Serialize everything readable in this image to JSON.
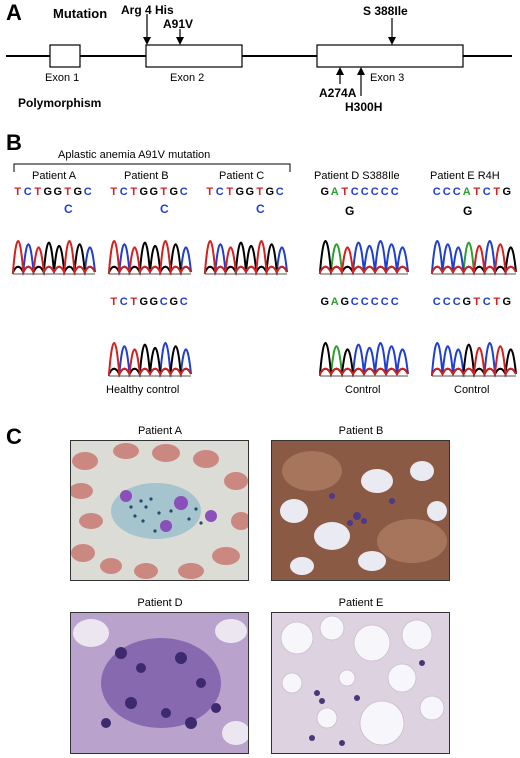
{
  "panel_a": {
    "letter": "A",
    "mutation_label": "Mutation",
    "polymorphism_label": "Polymorphism",
    "mutations": {
      "m1": "Arg 4 His",
      "m2": "A91V",
      "m3": "S 388Ile"
    },
    "polymorphisms": {
      "p1": "A274A",
      "p2": "H300H"
    },
    "exons": {
      "e1": "Exon 1",
      "e2": "Exon 2",
      "e3": "Exon 3"
    }
  },
  "panel_b": {
    "letter": "B",
    "group_title": "Aplastic anemia A91V mutation",
    "patients": {
      "a": {
        "title": "Patient A",
        "sequence": "TCTGGTGC",
        "variant": "C"
      },
      "b": {
        "title": "Patient B",
        "sequence": "TCTGGTGC",
        "variant": "C"
      },
      "c": {
        "title": "Patient C",
        "sequence": "TCTGGTGC",
        "variant": "C"
      },
      "d": {
        "title": "Patient D S388Ile",
        "sequence": "GATCCCCC",
        "variant": "G"
      },
      "e": {
        "title": "Patient E R4H",
        "sequence": "CCCATCTG",
        "variant": "G"
      }
    },
    "controls": {
      "healthy": {
        "sequence": "TCTGGCGC",
        "label": "Healthy control"
      },
      "d": {
        "sequence": "GAGCCCCC",
        "label": "Control"
      },
      "e": {
        "sequence": "CCCGTCTG",
        "label": "Control"
      }
    }
  },
  "panel_c": {
    "letter": "C",
    "images": {
      "a": {
        "title": "Patient A"
      },
      "b": {
        "title": "Patient B"
      },
      "d": {
        "title": "Patient D"
      },
      "e": {
        "title": "Patient E"
      }
    }
  },
  "colors": {
    "A": "#2ca02c",
    "C": "#1f3fd1",
    "G": "#000000",
    "T": "#d62020"
  }
}
